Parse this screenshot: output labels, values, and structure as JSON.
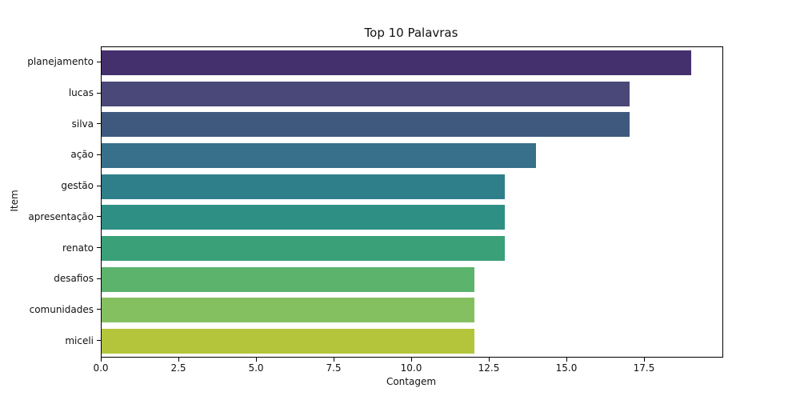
{
  "chart_data": {
    "type": "bar",
    "orientation": "horizontal",
    "title": "Top 10 Palavras",
    "xlabel": "Contagem",
    "ylabel": "Item",
    "categories": [
      "planejamento",
      "lucas",
      "silva",
      "ação",
      "gestão",
      "apresentação",
      "renato",
      "desafios",
      "comunidades",
      "miceli"
    ],
    "values": [
      19,
      17,
      17,
      14,
      13,
      13,
      13,
      12,
      12,
      12
    ],
    "bar_colors": [
      "#45306e",
      "#4a4878",
      "#3f597e",
      "#38708b",
      "#2f7f8a",
      "#2e8f85",
      "#3aa077",
      "#5cb36c",
      "#84c05f",
      "#b4c53c"
    ],
    "xlim": [
      0,
      20
    ],
    "xticks": [
      0,
      2.5,
      5,
      7.5,
      10,
      12.5,
      15,
      17.5
    ],
    "xtick_labels": [
      "0.0",
      "2.5",
      "5.0",
      "7.5",
      "10.0",
      "12.5",
      "15.0",
      "17.5"
    ],
    "grid": false,
    "legend": null,
    "bar_width_fraction": 0.8,
    "axis_color": "#000000",
    "background_color": "#ffffff"
  }
}
